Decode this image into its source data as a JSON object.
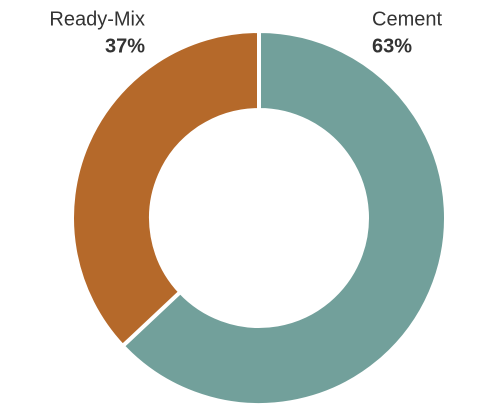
{
  "chart_data": {
    "type": "pie",
    "donut": true,
    "categories": [
      "Cement",
      "Ready-Mix"
    ],
    "values": [
      63,
      37
    ],
    "value_labels": [
      "63%",
      "37%"
    ],
    "colors": [
      "#72a09b",
      "#b5692a"
    ]
  }
}
